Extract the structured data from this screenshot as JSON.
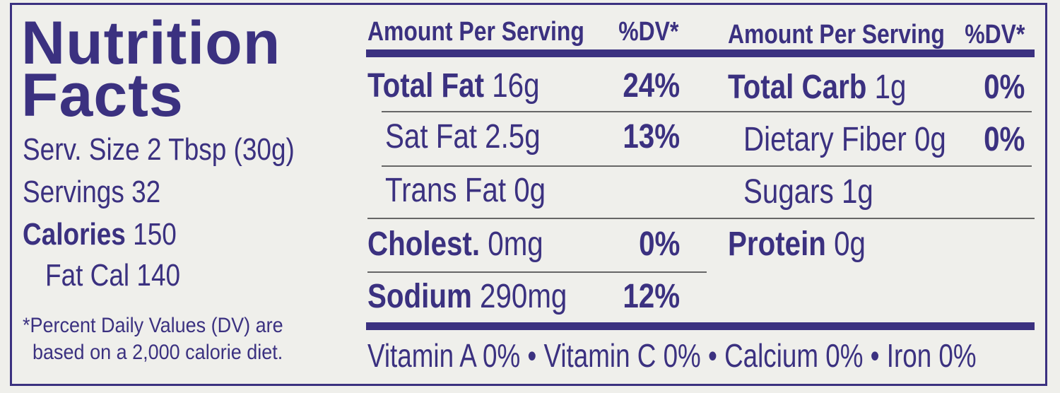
{
  "title_line1": "Nutrition",
  "title_line2": "Facts",
  "serving_size": "Serv. Size 2 Tbsp (30g)",
  "servings": "Servings 32",
  "calories_label": "Calories",
  "calories_value": "150",
  "fat_cal": "Fat Cal 140",
  "footnote_line1": "*Percent Daily Values (DV) are",
  "footnote_line2": "based on a 2,000 calorie diet.",
  "header": {
    "amount": "Amount Per Serving",
    "dv": "%DV*"
  },
  "left_rows": [
    {
      "label": "Total Fat",
      "amount": "16g",
      "dv": "24%"
    },
    {
      "label": "Sat Fat 2.5g",
      "amount": "",
      "dv": "13%"
    },
    {
      "label": "Trans Fat 0g",
      "amount": "",
      "dv": ""
    },
    {
      "label": "Cholest.",
      "amount": "0mg",
      "dv": "0%"
    },
    {
      "label": "Sodium",
      "amount": "290mg",
      "dv": "12%"
    }
  ],
  "right_rows": [
    {
      "label": "Total Carb",
      "amount": "1g",
      "dv": "0%"
    },
    {
      "label": "Dietary Fiber 0g",
      "amount": "",
      "dv": "0%"
    },
    {
      "label": "Sugars 1g",
      "amount": "",
      "dv": ""
    },
    {
      "label": "Protein",
      "amount": "0g",
      "dv": ""
    }
  ],
  "vitamins": "Vitamin A 0% • Vitamin C 0% • Calcium 0% • Iron 0%",
  "colors": {
    "ink": "#3b3180",
    "background": "#efefeb"
  }
}
